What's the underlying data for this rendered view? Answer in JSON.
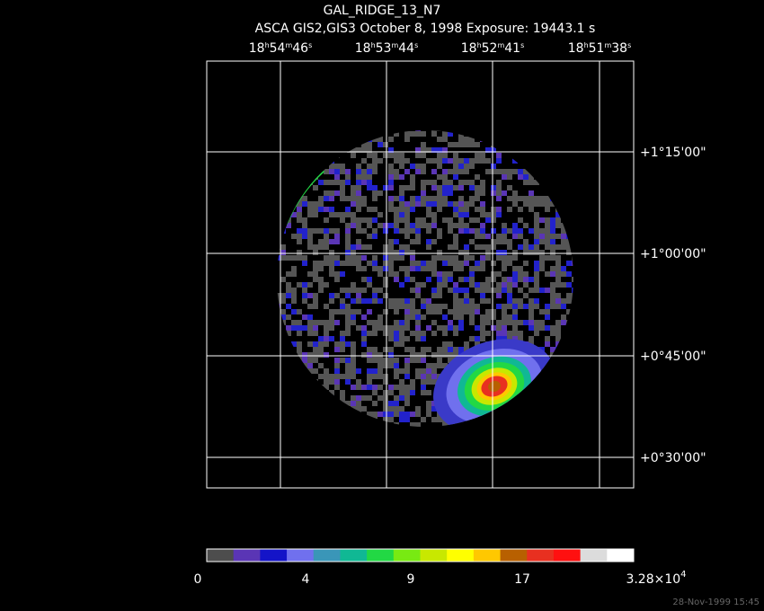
{
  "title": "GAL_RIDGE_13_N7",
  "subtitle": "ASCA GIS2,GIS3 October 8, 1998 Exposure: 19443.1 s",
  "ra_labels": [
    [
      "18",
      "h",
      "54",
      "m",
      "46",
      "s"
    ],
    [
      "18",
      "h",
      "53",
      "m",
      "44",
      "s"
    ],
    [
      "18",
      "h",
      "52",
      "m",
      "41",
      "s"
    ],
    [
      "18",
      "h",
      "51",
      "m",
      "38",
      "s"
    ]
  ],
  "dec_labels": [
    "+1°15'00\"",
    "+1°00'00\"",
    "+0°45'00\"",
    "+0°30'00\""
  ],
  "colorbar": {
    "labels": [
      [
        "0"
      ],
      [
        "4"
      ],
      [
        "9"
      ],
      [
        "17"
      ],
      [
        "3.28×10",
        "4"
      ]
    ],
    "colors": [
      "#4d4d4d",
      "#5a35b5",
      "#1414c8",
      "#7070ee",
      "#3a96b8",
      "#10b894",
      "#22d844",
      "#78ea12",
      "#c8e800",
      "#ffff00",
      "#ffc800",
      "#b86000",
      "#e83020",
      "#ff1010",
      "#dcdcdc",
      "#ffffff"
    ]
  },
  "timestamp": "28-Nov-1999 15:45"
}
